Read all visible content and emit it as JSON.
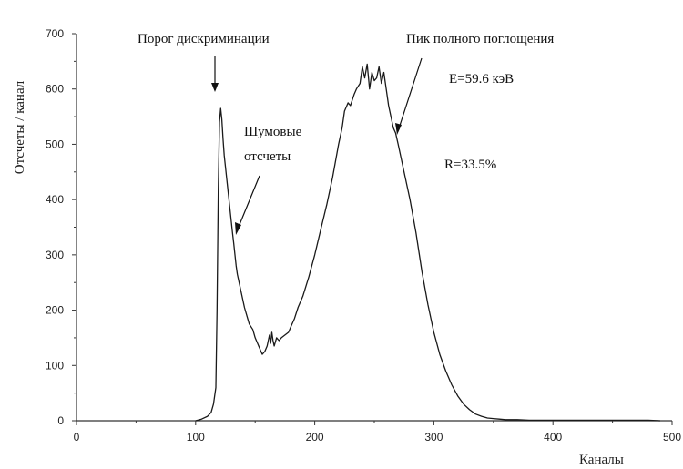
{
  "chart_data": {
    "type": "line",
    "title": "",
    "xlabel": "Каналы",
    "ylabel": "Отсчеты / канал",
    "xlim": [
      0,
      500
    ],
    "ylim": [
      0,
      700
    ],
    "x_ticks": [
      0,
      100,
      200,
      300,
      400,
      500
    ],
    "y_ticks": [
      0,
      100,
      200,
      300,
      400,
      500,
      600,
      700
    ],
    "grid": false,
    "legend": "none",
    "line_color": "#1a1a1a",
    "series": [
      {
        "x": [
          100,
          105,
          110,
          113,
          115,
          117,
          118,
          119,
          120,
          121,
          122,
          123,
          124,
          125,
          126,
          127,
          128,
          129,
          130,
          131,
          132,
          133,
          134,
          135,
          137,
          139,
          141,
          143,
          145,
          148,
          150,
          152,
          154,
          156,
          158,
          160,
          162,
          163,
          164,
          165,
          166,
          168,
          170,
          172,
          175,
          178,
          180,
          183,
          186,
          190,
          195,
          200,
          205,
          210,
          215,
          220,
          223,
          225,
          228,
          230,
          233,
          235,
          238,
          240,
          242,
          244,
          246,
          248,
          250,
          252,
          254,
          256,
          258,
          260,
          262,
          264,
          266,
          268,
          270,
          273,
          276,
          280,
          285,
          290,
          295,
          300,
          305,
          310,
          315,
          320,
          325,
          330,
          335,
          340,
          345,
          350,
          355,
          360,
          370,
          380,
          400,
          420,
          440,
          460,
          480,
          490
        ],
        "y": [
          0,
          3,
          8,
          15,
          30,
          60,
          200,
          420,
          540,
          565,
          545,
          510,
          480,
          460,
          440,
          420,
          400,
          380,
          360,
          340,
          320,
          300,
          280,
          265,
          245,
          225,
          205,
          190,
          175,
          165,
          150,
          140,
          130,
          120,
          125,
          135,
          155,
          140,
          160,
          145,
          135,
          150,
          145,
          150,
          155,
          160,
          170,
          185,
          205,
          225,
          260,
          300,
          345,
          390,
          440,
          500,
          530,
          560,
          575,
          570,
          590,
          600,
          610,
          640,
          620,
          645,
          600,
          630,
          615,
          620,
          640,
          610,
          630,
          600,
          570,
          550,
          530,
          520,
          500,
          470,
          440,
          400,
          340,
          270,
          210,
          160,
          120,
          90,
          65,
          45,
          30,
          20,
          12,
          8,
          5,
          4,
          3,
          2,
          2,
          1,
          1,
          1,
          1,
          1,
          1,
          0
        ]
      }
    ],
    "annotations": [
      {
        "text": "Порог дискриминации"
      },
      {
        "text": "Шумовые"
      },
      {
        "text": "отсчеты"
      },
      {
        "text": "Пик полного поглощения"
      },
      {
        "text": "E=59.6 кэВ"
      },
      {
        "text": "R=33.5%"
      }
    ]
  }
}
